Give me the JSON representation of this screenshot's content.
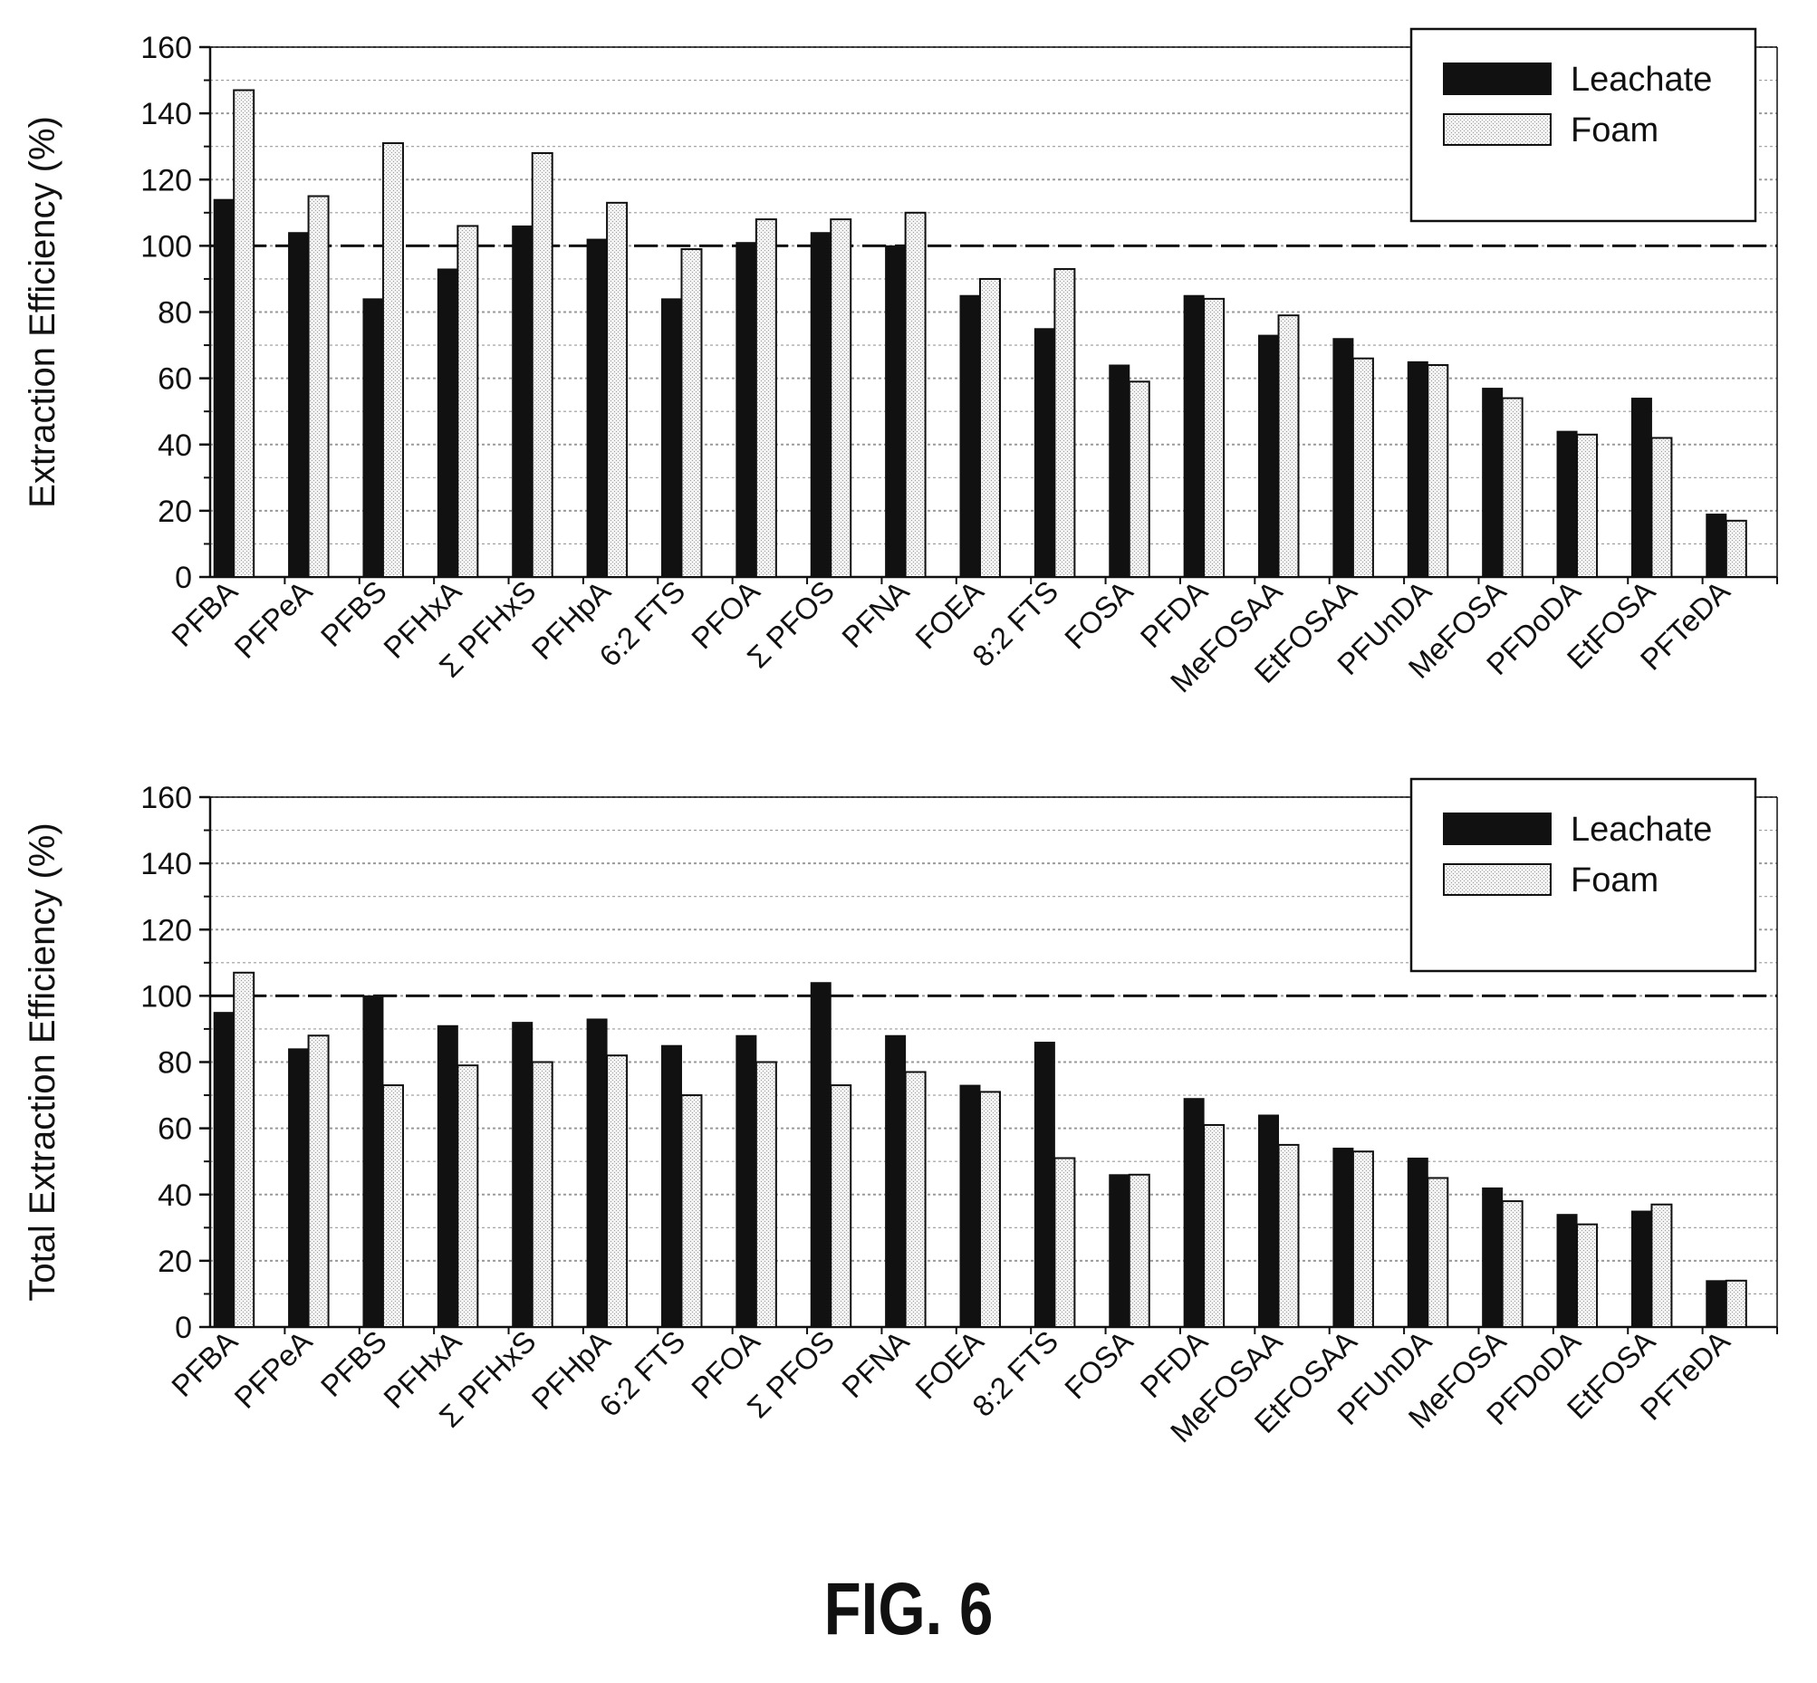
{
  "figure_caption": "FIG. 6",
  "colors": {
    "leachate": "#111111",
    "foam": "#dedede",
    "grid": "#9a9a9a"
  },
  "chart_data": [
    {
      "type": "bar",
      "ylabel": "Extraction Efficiency (%)",
      "ylim": [
        0,
        160
      ],
      "yticks": [
        0,
        20,
        40,
        60,
        80,
        100,
        120,
        140,
        160
      ],
      "reference_line": 100,
      "grid": true,
      "legend_position": "top-right",
      "categories": [
        "PFBA",
        "PFPeA",
        "PFBS",
        "PFHxA",
        "Σ PFHxS",
        "PFHpA",
        "6:2 FTS",
        "PFOA",
        "Σ PFOS",
        "PFNA",
        "FOEA",
        "8:2 FTS",
        "FOSA",
        "PFDA",
        "MeFOSAA",
        "EtFOSAA",
        "PFUnDA",
        "MeFOSA",
        "PFDoDA",
        "EtFOSA",
        "PFTeDA"
      ],
      "series": [
        {
          "name": "Leachate",
          "values": [
            114,
            104,
            84,
            93,
            106,
            102,
            84,
            101,
            104,
            100,
            85,
            75,
            64,
            85,
            73,
            72,
            65,
            57,
            44,
            54,
            19
          ]
        },
        {
          "name": "Foam",
          "values": [
            147,
            115,
            131,
            106,
            128,
            113,
            99,
            108,
            108,
            110,
            90,
            93,
            59,
            84,
            79,
            66,
            64,
            54,
            43,
            42,
            17
          ]
        }
      ]
    },
    {
      "type": "bar",
      "ylabel": "Total Extraction Efficiency (%)",
      "ylim": [
        0,
        160
      ],
      "yticks": [
        0,
        20,
        40,
        60,
        80,
        100,
        120,
        140,
        160
      ],
      "reference_line": 100,
      "grid": true,
      "legend_position": "top-right",
      "categories": [
        "PFBA",
        "PFPeA",
        "PFBS",
        "PFHxA",
        "Σ PFHxS",
        "PFHpA",
        "6:2 FTS",
        "PFOA",
        "Σ PFOS",
        "PFNA",
        "FOEA",
        "8:2 FTS",
        "FOSA",
        "PFDA",
        "MeFOSAA",
        "EtFOSAA",
        "PFUnDA",
        "MeFOSA",
        "PFDoDA",
        "EtFOSA",
        "PFTeDA"
      ],
      "series": [
        {
          "name": "Leachate",
          "values": [
            95,
            84,
            100,
            91,
            92,
            93,
            85,
            88,
            104,
            88,
            73,
            86,
            46,
            69,
            64,
            54,
            51,
            42,
            34,
            35,
            14
          ]
        },
        {
          "name": "Foam",
          "values": [
            107,
            88,
            73,
            79,
            80,
            82,
            70,
            80,
            73,
            77,
            71,
            51,
            46,
            61,
            55,
            53,
            45,
            38,
            31,
            37,
            14
          ]
        }
      ]
    }
  ]
}
